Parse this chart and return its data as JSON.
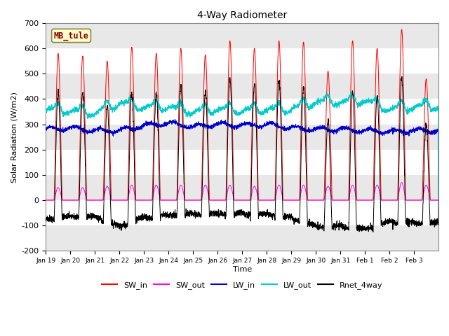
{
  "title": "4-Way Radiometer",
  "xlabel": "Time",
  "ylabel": "Solar Radiation (W/m2)",
  "ylim": [
    -200,
    700
  ],
  "background_color": "#ffffff",
  "band_color": "#e8e8e8",
  "legend_labels": [
    "SW_in",
    "SW_out",
    "LW_in",
    "LW_out",
    "Rnet_4way"
  ],
  "legend_colors": [
    "#ff0000",
    "#ff00ff",
    "#0000cc",
    "#00cccc",
    "#000000"
  ],
  "xtick_labels": [
    "Jan 19",
    "Jan 20",
    "Jan 21",
    "Jan 22",
    "Jan 23",
    "Jan 24",
    "Jan 25",
    "Jan 26",
    "Jan 27",
    "Jan 28",
    "Jan 29",
    "Jan 30",
    "Jan 31",
    "Feb 1",
    "Feb 2",
    "Feb 3"
  ],
  "station_label": "MB_tule",
  "station_label_fgcolor": "#880000",
  "station_label_bgcolor": "#ffffcc",
  "SW_in_peak": [
    580,
    570,
    550,
    605,
    580,
    600,
    575,
    630,
    600,
    630,
    625,
    510,
    630,
    600,
    675,
    480
  ],
  "SW_out_peak": [
    50,
    50,
    55,
    60,
    60,
    60,
    60,
    60,
    55,
    60,
    60,
    55,
    60,
    60,
    70,
    60
  ],
  "LW_in_base": [
    280,
    285,
    275,
    275,
    295,
    305,
    290,
    300,
    295,
    300,
    285,
    280,
    280,
    275,
    270,
    275
  ],
  "LW_out_base": [
    355,
    350,
    340,
    380,
    365,
    365,
    345,
    355,
    350,
    355,
    355,
    385,
    385,
    390,
    355,
    365
  ]
}
